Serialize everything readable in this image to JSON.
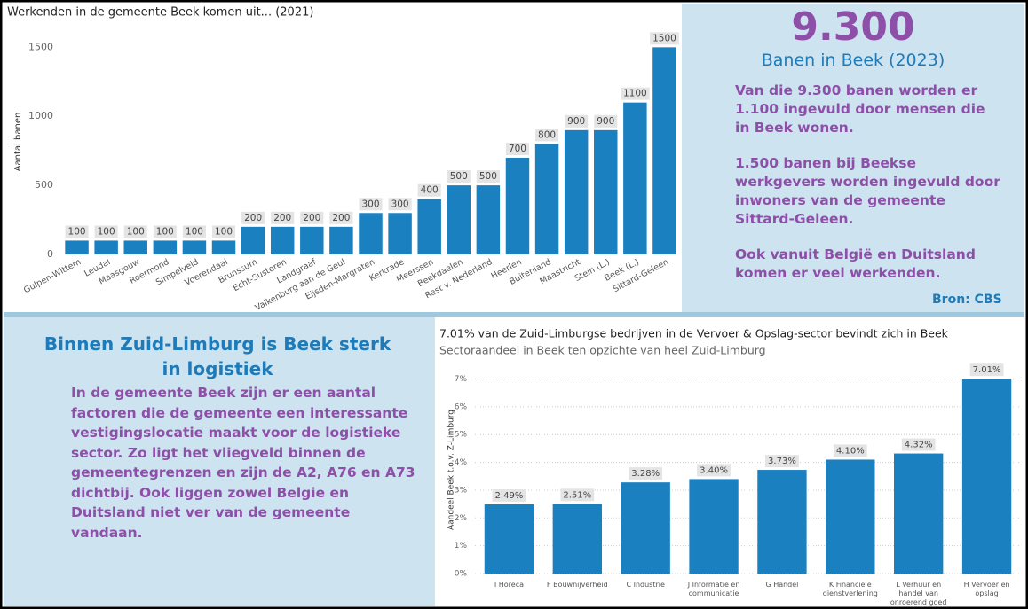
{
  "chart_data": [
    {
      "type": "bar",
      "title": "Werkenden in de gemeente Beek komen uit... (2021)",
      "y_label": "Aantal banen",
      "categories": [
        "Gulpen-Wittem",
        "Leudal",
        "Maasgouw",
        "Roermond",
        "Simpelveld",
        "Voerendaal",
        "Brunssum",
        "Echt-Susteren",
        "Landgraaf",
        "Valkenburg aan de Geul",
        "Eijsden-Margraten",
        "Kerkrade",
        "Meerssen",
        "Beekdaelen",
        "Rest v. Nederland",
        "Heerlen",
        "Buitenland",
        "Maastricht",
        "Stein (L.)",
        "Beek (L.)",
        "Sittard-Geleen"
      ],
      "values": [
        100,
        100,
        100,
        100,
        100,
        100,
        200,
        200,
        200,
        200,
        300,
        300,
        400,
        500,
        500,
        700,
        800,
        900,
        900,
        1100,
        1500
      ],
      "color": "#1b80bf",
      "ylim": [
        0,
        1650
      ],
      "yticks": [
        0,
        500,
        1000,
        1500
      ],
      "grid": false
    },
    {
      "type": "bar",
      "title": "7.01% van de Zuid-Limburgse bedrijven in de Vervoer & Opslag-sector bevindt zich in Beek",
      "subtitle": "Sectoraandeel in Beek ten opzichte van heel Zuid-Limburg",
      "y_label": "Aandeel Beek t.o.v. Z-Limburg",
      "categories": [
        "I Horeca",
        "F Bouwnijverheid",
        "C Industrie",
        "J Informatie en communicatie",
        "G Handel",
        "K Financiële dienstverlening",
        "L Verhuur en handel van onroerend goed",
        "H Vervoer en opslag"
      ],
      "values": [
        2.49,
        2.51,
        3.28,
        3.4,
        3.73,
        4.1,
        4.32,
        7.01
      ],
      "value_labels": [
        "2.49%",
        "2.51%",
        "3.28%",
        "3.40%",
        "3.73%",
        "4.10%",
        "4.32%",
        "7.01%"
      ],
      "color": "#1b80bf",
      "ylim": [
        0,
        7.4
      ],
      "yticks": [
        {
          "value": 0,
          "label": "0%"
        },
        {
          "value": 1,
          "label": "1%"
        },
        {
          "value": 2,
          "label": "2%"
        },
        {
          "value": 3,
          "label": "3%"
        },
        {
          "value": 4,
          "label": "4%"
        },
        {
          "value": 5,
          "label": "5%"
        },
        {
          "value": 6,
          "label": "6%"
        },
        {
          "value": 7,
          "label": "7%"
        }
      ],
      "grid": true
    }
  ],
  "headline": {
    "number": "9.300",
    "subtitle": "Banen in Beek (2023)",
    "paragraphs": [
      "Van die 9.300 banen worden er 1.100 ingevuld door mensen die in Beek wonen.",
      "1.500 banen bij Beekse werkgevers worden ingevuld door inwoners van de gemeente Sittard-Geleen.",
      "Ook vanuit België en Duitsland komen er veel werkenden."
    ],
    "source": "Bron: CBS"
  },
  "logistics": {
    "title": "Binnen Zuid-Limburg is Beek sterk in logistiek",
    "text": "In de gemeente Beek zijn er een aantal factoren die de gemeente een interessante vestigingslocatie maakt voor de logistieke sector. Zo ligt het vliegveld binnen de gemeentegrenzen en zijn de A2, A76 en A73 dichtbij. Ook liggen zowel Belgie en Duitsland niet ver van de gemeente vandaan."
  }
}
